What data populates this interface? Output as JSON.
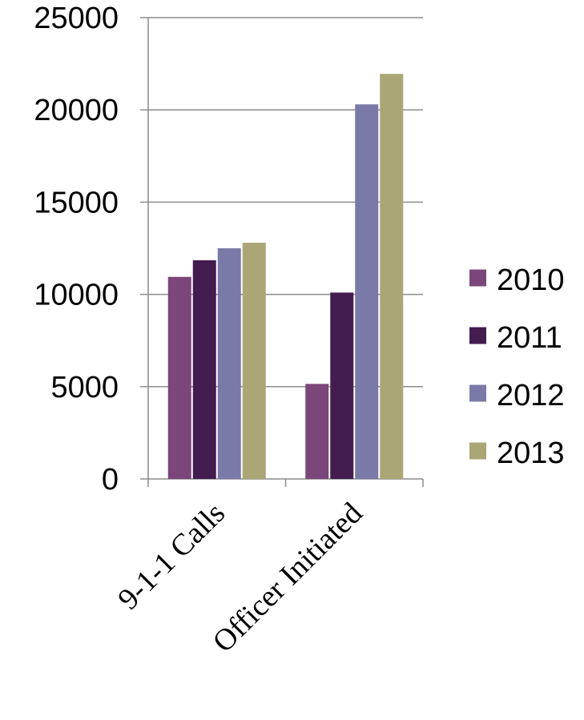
{
  "chart_data": {
    "type": "bar",
    "categories": [
      "9-1-1 Calls",
      "Officer Initiated"
    ],
    "series": [
      {
        "name": "2010",
        "color": "#7b4679",
        "values": [
          10950,
          5150
        ]
      },
      {
        "name": "2011",
        "color": "#431c50",
        "values": [
          11850,
          10100
        ]
      },
      {
        "name": "2012",
        "color": "#7a7aa8",
        "values": [
          12500,
          20300
        ]
      },
      {
        "name": "2013",
        "color": "#aaa676",
        "values": [
          12800,
          21950
        ]
      }
    ],
    "title": "",
    "xlabel": "",
    "ylabel": "",
    "ylim": [
      0,
      25000
    ],
    "yticks": [
      0,
      5000,
      10000,
      15000,
      20000,
      25000
    ],
    "grid": true,
    "legend_position": "right"
  }
}
